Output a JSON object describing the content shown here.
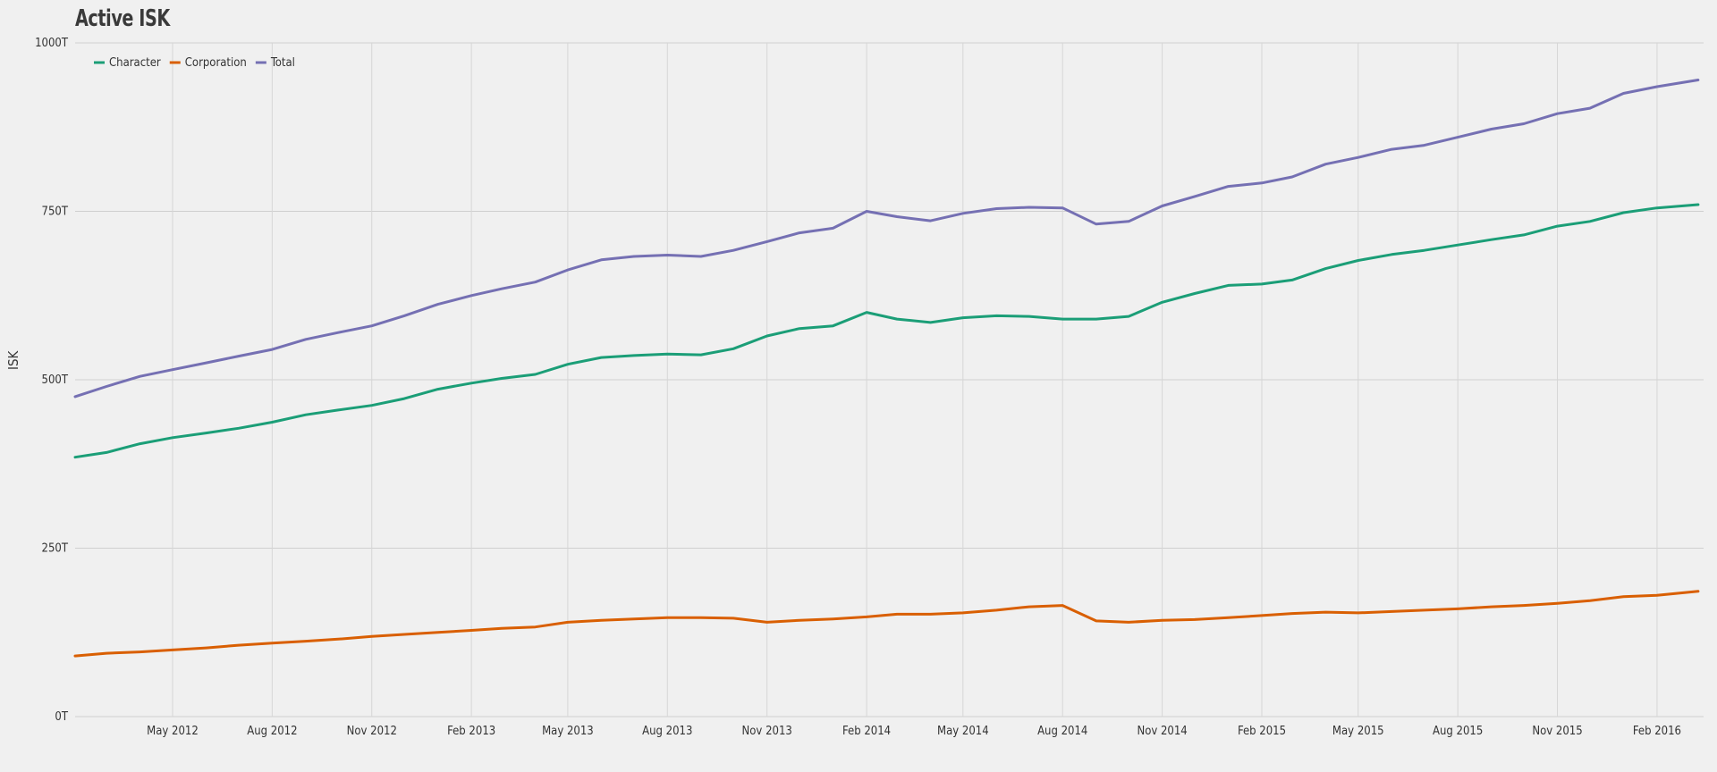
{
  "chart_data": {
    "type": "line",
    "title": "Active ISK",
    "xlabel": "",
    "ylabel": "ISK",
    "ylim": [
      0,
      1000
    ],
    "yticks": [
      0,
      250,
      500,
      750,
      1000
    ],
    "ytick_labels": [
      "0T",
      "250T",
      "500T",
      "750T",
      "1000T"
    ],
    "xrange": [
      "2012-02-01",
      "2016-03-15"
    ],
    "xticks": [
      "2012-05-01",
      "2012-08-01",
      "2012-11-01",
      "2013-02-01",
      "2013-05-01",
      "2013-08-01",
      "2013-11-01",
      "2014-02-01",
      "2014-05-01",
      "2014-08-01",
      "2014-11-01",
      "2015-02-01",
      "2015-05-01",
      "2015-08-01",
      "2015-11-01",
      "2016-02-01"
    ],
    "xtick_labels": [
      "May 2012",
      "Aug 2012",
      "Nov 2012",
      "Feb 2013",
      "May 2013",
      "Aug 2013",
      "Nov 2013",
      "Feb 2014",
      "May 2014",
      "Aug 2014",
      "Nov 2014",
      "Feb 2015",
      "May 2015",
      "Aug 2015",
      "Nov 2015",
      "Feb 2016"
    ],
    "grid": true,
    "legend_position": "top-left",
    "x": [
      "2012-02-01",
      "2012-03-01",
      "2012-04-01",
      "2012-05-01",
      "2012-06-01",
      "2012-07-01",
      "2012-08-01",
      "2012-09-01",
      "2012-10-01",
      "2012-11-01",
      "2012-12-01",
      "2013-01-01",
      "2013-02-01",
      "2013-03-01",
      "2013-04-01",
      "2013-05-01",
      "2013-06-01",
      "2013-07-01",
      "2013-08-01",
      "2013-09-01",
      "2013-10-01",
      "2013-11-01",
      "2013-12-01",
      "2014-01-01",
      "2014-02-01",
      "2014-03-01",
      "2014-04-01",
      "2014-05-01",
      "2014-06-01",
      "2014-07-01",
      "2014-08-01",
      "2014-09-01",
      "2014-10-01",
      "2014-11-01",
      "2014-12-01",
      "2015-01-01",
      "2015-02-01",
      "2015-03-01",
      "2015-04-01",
      "2015-05-01",
      "2015-06-01",
      "2015-07-01",
      "2015-08-01",
      "2015-09-01",
      "2015-10-01",
      "2015-11-01",
      "2015-12-01",
      "2016-01-01",
      "2016-02-01",
      "2016-03-10"
    ],
    "series": [
      {
        "name": "Character",
        "color": "#1b9e77",
        "values": [
          385,
          392,
          405,
          414,
          421,
          428,
          437,
          448,
          455,
          462,
          472,
          486,
          495,
          502,
          508,
          523,
          533,
          536,
          538,
          537,
          546,
          565,
          576,
          580,
          600,
          590,
          585,
          592,
          595,
          594,
          590,
          590,
          594,
          615,
          628,
          640,
          642,
          648,
          665,
          677,
          686,
          692,
          700,
          708,
          715,
          728,
          735,
          748,
          755,
          760
        ]
      },
      {
        "name": "Corporation",
        "color": "#d95f02",
        "values": [
          90,
          94,
          96,
          99,
          102,
          106,
          109,
          112,
          115,
          119,
          122,
          125,
          128,
          131,
          133,
          140,
          143,
          145,
          147,
          147,
          146,
          140,
          143,
          145,
          148,
          152,
          152,
          154,
          158,
          163,
          165,
          142,
          140,
          143,
          144,
          147,
          150,
          153,
          155,
          154,
          156,
          158,
          160,
          163,
          165,
          168,
          172,
          178,
          180,
          186
        ]
      },
      {
        "name": "Total",
        "color": "#7570b3",
        "values": [
          475,
          490,
          505,
          515,
          525,
          535,
          545,
          560,
          570,
          580,
          595,
          612,
          625,
          635,
          645,
          663,
          678,
          683,
          685,
          683,
          692,
          705,
          718,
          725,
          750,
          742,
          736,
          747,
          754,
          756,
          755,
          731,
          735,
          758,
          772,
          787,
          792,
          801,
          820,
          830,
          842,
          848,
          860,
          872,
          880,
          895,
          903,
          925,
          935,
          945
        ]
      }
    ]
  }
}
